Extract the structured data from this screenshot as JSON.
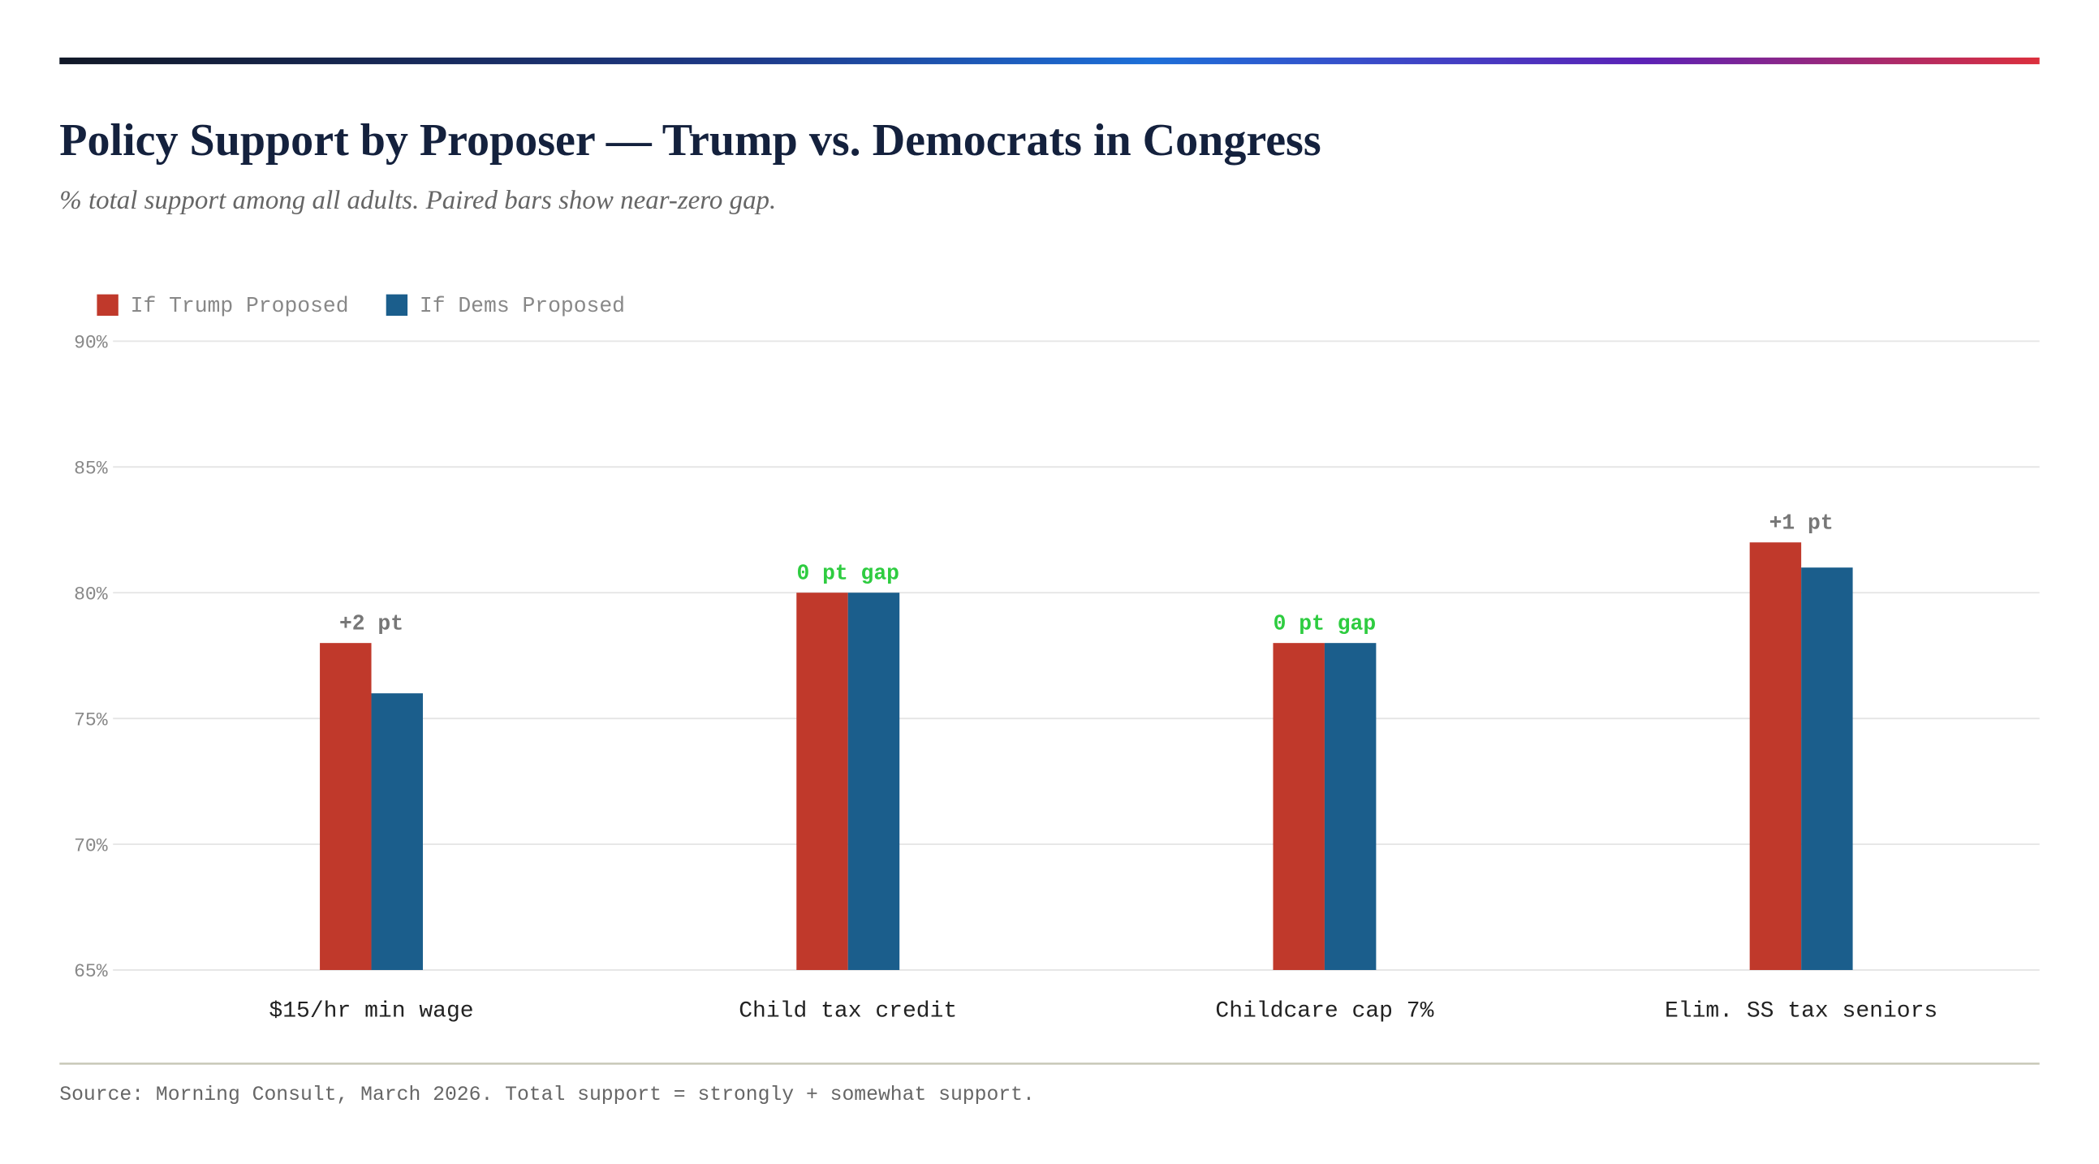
{
  "chart_data": {
    "type": "bar",
    "title": "Policy Support by Proposer — Trump vs. Democrats in Congress",
    "subtitle": "% total support among all adults. Paired bars show near-zero gap.",
    "categories": [
      "$15/hr min wage",
      "Child tax credit",
      "Childcare cap 7%",
      "Elim. SS tax seniors"
    ],
    "series": [
      {
        "name": "If Trump Proposed",
        "color": "#c0392b",
        "values": [
          78,
          80,
          78,
          82
        ]
      },
      {
        "name": "If Dems Proposed",
        "color": "#1b5e8c",
        "values": [
          76,
          80,
          78,
          81
        ]
      }
    ],
    "ylim": [
      65,
      90
    ],
    "yticks": [
      {
        "value": 65,
        "label": "65%"
      },
      {
        "value": 70,
        "label": "70%"
      },
      {
        "value": 75,
        "label": "75%"
      },
      {
        "value": 80,
        "label": "80%"
      },
      {
        "value": 85,
        "label": "85%"
      },
      {
        "value": 90,
        "label": "90%"
      }
    ],
    "grid": true,
    "annotations": [
      {
        "text": "+2 pt",
        "color": "#777777"
      },
      {
        "text": "0 pt gap",
        "color": "#2ecc40"
      },
      {
        "text": "0 pt gap",
        "color": "#2ecc40"
      },
      {
        "text": "+1 pt",
        "color": "#777777"
      }
    ],
    "source": "Source: Morning Consult, March 2026. Total support = strongly + somewhat support."
  }
}
